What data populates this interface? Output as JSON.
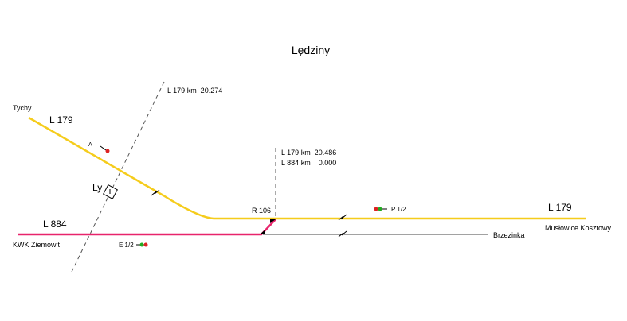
{
  "title": "Lędziny",
  "labels": {
    "km_20274": "L 179 km  20.274",
    "tychy": "Tychy",
    "l179_left": "L 179",
    "signal_a": "A",
    "ly": "Ly",
    "km_20486": "L 179 km  20.486",
    "km_0000": "L 884 km    0.000",
    "r106": "R 106",
    "signal_p12": "P 1/2",
    "l179_right": "L 179",
    "muslowice": "Musłowice Kosztowy",
    "l884": "L 884",
    "kwk": "KWK Ziemowit",
    "signal_e12": "E 1/2",
    "brzezinka": "Brzezinka"
  }
}
